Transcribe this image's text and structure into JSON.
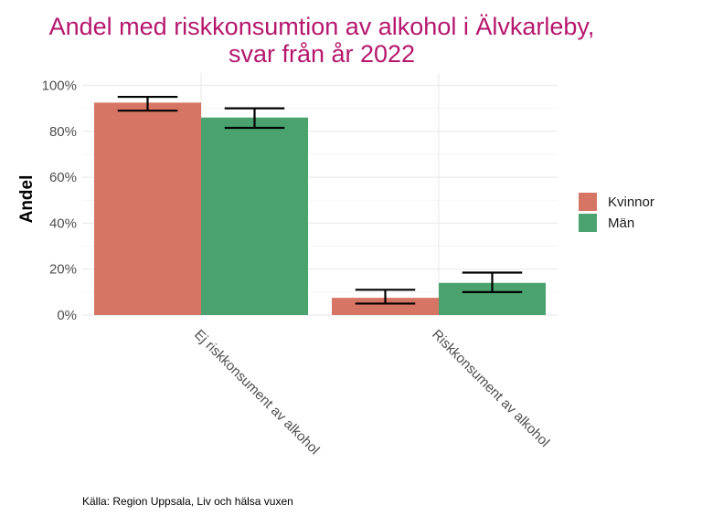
{
  "chart_data": {
    "type": "bar",
    "title_lines": [
      "Andel med riskkonsumtion av alkohol i Älvkarleby,",
      "svar från år 2022"
    ],
    "xlabel": "",
    "ylabel": "Andel",
    "categories": [
      "Ej riskkonsument av alkohol",
      "Riskkonsument av alkohol"
    ],
    "series": [
      {
        "name": "Kvinnor",
        "color": "#d77565",
        "values": [
          0.925,
          0.075
        ],
        "ci_low": [
          0.89,
          0.05
        ],
        "ci_high": [
          0.95,
          0.11
        ]
      },
      {
        "name": "Män",
        "color": "#4aa36f",
        "values": [
          0.86,
          0.14
        ],
        "ci_low": [
          0.815,
          0.1
        ],
        "ci_high": [
          0.9,
          0.185
        ]
      }
    ],
    "ylim": [
      0,
      1
    ],
    "yticks": [
      0,
      0.2,
      0.4,
      0.6,
      0.8,
      1.0
    ],
    "ytick_labels": [
      "0%",
      "20%",
      "40%",
      "60%",
      "80%",
      "100%"
    ],
    "grid": true,
    "legend_position": "right",
    "caption": "Källa: Region Uppsala, Liv och hälsa vuxen"
  }
}
